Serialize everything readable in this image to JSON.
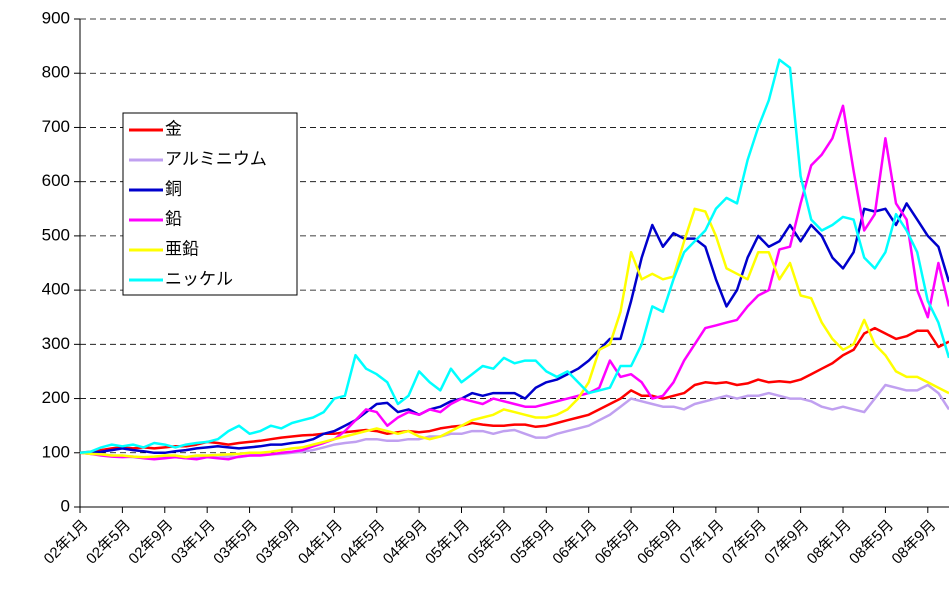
{
  "chart_data": {
    "type": "line",
    "categories": [
      "02年1月",
      null,
      null,
      null,
      "02年5月",
      null,
      null,
      null,
      "02年9月",
      null,
      null,
      null,
      "03年1月",
      null,
      null,
      null,
      "03年5月",
      null,
      null,
      null,
      "03年9月",
      null,
      null,
      null,
      "04年1月",
      null,
      null,
      null,
      "04年5月",
      null,
      null,
      null,
      "04年9月",
      null,
      null,
      null,
      "05年1月",
      null,
      null,
      null,
      "05年5月",
      null,
      null,
      null,
      "05年9月",
      null,
      null,
      null,
      "06年1月",
      null,
      null,
      null,
      "06年5月",
      null,
      null,
      null,
      "06年9月",
      null,
      null,
      null,
      "07年1月",
      null,
      null,
      null,
      "07年5月",
      null,
      null,
      null,
      "07年9月",
      null,
      null,
      null,
      "08年1月",
      null,
      null,
      null,
      "08年5月",
      null,
      null,
      null,
      "08年9月",
      null,
      null
    ],
    "series": [
      {
        "name": "金",
        "color": "#ff0000",
        "values": [
          100,
          102,
          105,
          108,
          110,
          108,
          110,
          108,
          110,
          112,
          112,
          115,
          120,
          118,
          115,
          118,
          120,
          122,
          125,
          128,
          130,
          132,
          133,
          135,
          135,
          138,
          140,
          142,
          140,
          135,
          138,
          140,
          138,
          140,
          145,
          148,
          150,
          155,
          152,
          150,
          150,
          152,
          152,
          148,
          150,
          155,
          160,
          165,
          170,
          180,
          190,
          200,
          215,
          205,
          205,
          200,
          205,
          210,
          225,
          230,
          228,
          230,
          225,
          228,
          235,
          230,
          232,
          230,
          235,
          245,
          255,
          265,
          280,
          290,
          320,
          330,
          320,
          310,
          315,
          325,
          325,
          295,
          305
        ]
      },
      {
        "name": "アルミニウム",
        "color": "#c0a0f0",
        "values": [
          100,
          98,
          97,
          95,
          93,
          92,
          90,
          92,
          93,
          92,
          90,
          92,
          92,
          95,
          93,
          92,
          95,
          96,
          97,
          98,
          100,
          102,
          105,
          110,
          115,
          118,
          120,
          125,
          125,
          122,
          122,
          125,
          125,
          130,
          130,
          135,
          135,
          140,
          140,
          135,
          140,
          142,
          135,
          128,
          128,
          135,
          140,
          145,
          150,
          160,
          170,
          185,
          200,
          195,
          190,
          185,
          185,
          180,
          190,
          195,
          200,
          205,
          200,
          205,
          205,
          210,
          205,
          200,
          200,
          195,
          185,
          180,
          185,
          180,
          175,
          200,
          225,
          220,
          215,
          215,
          225,
          210,
          180
        ]
      },
      {
        "name": "銅",
        "color": "#0000cc",
        "values": [
          100,
          100,
          102,
          105,
          108,
          105,
          103,
          100,
          100,
          103,
          105,
          108,
          110,
          112,
          110,
          108,
          110,
          112,
          115,
          115,
          118,
          120,
          125,
          135,
          140,
          150,
          160,
          175,
          190,
          192,
          175,
          180,
          170,
          180,
          185,
          195,
          200,
          210,
          205,
          210,
          210,
          210,
          200,
          220,
          230,
          235,
          245,
          255,
          270,
          290,
          310,
          310,
          380,
          460,
          520,
          480,
          505,
          495,
          495,
          480,
          420,
          370,
          400,
          460,
          500,
          480,
          490,
          520,
          490,
          520,
          500,
          460,
          440,
          470,
          550,
          545,
          550,
          520,
          560,
          530,
          500,
          480,
          415
        ]
      },
      {
        "name": "鉛",
        "color": "#ff00ff",
        "values": [
          100,
          98,
          95,
          93,
          92,
          93,
          90,
          88,
          90,
          92,
          90,
          88,
          92,
          90,
          88,
          93,
          95,
          95,
          97,
          100,
          102,
          105,
          112,
          118,
          125,
          140,
          160,
          180,
          175,
          150,
          165,
          175,
          170,
          180,
          175,
          190,
          200,
          195,
          190,
          200,
          195,
          190,
          185,
          185,
          190,
          195,
          200,
          205,
          210,
          220,
          270,
          240,
          245,
          230,
          200,
          205,
          230,
          270,
          300,
          330,
          335,
          340,
          345,
          370,
          390,
          400,
          475,
          480,
          560,
          630,
          650,
          680,
          740,
          620,
          510,
          540,
          680,
          560,
          530,
          400,
          350,
          450,
          370
        ]
      },
      {
        "name": "亜鉛",
        "color": "#ffff00",
        "values": [
          100,
          98,
          97,
          95,
          95,
          93,
          92,
          93,
          95,
          95,
          92,
          95,
          95,
          96,
          97,
          98,
          100,
          100,
          102,
          105,
          108,
          110,
          115,
          120,
          125,
          130,
          135,
          140,
          145,
          140,
          135,
          140,
          130,
          125,
          130,
          140,
          150,
          160,
          165,
          170,
          180,
          175,
          170,
          165,
          165,
          170,
          180,
          200,
          230,
          290,
          300,
          360,
          470,
          420,
          430,
          420,
          425,
          490,
          550,
          545,
          500,
          440,
          430,
          420,
          470,
          470,
          420,
          450,
          390,
          385,
          340,
          310,
          290,
          300,
          345,
          300,
          280,
          250,
          240,
          240,
          230,
          220,
          210
        ]
      },
      {
        "name": "ニッケル",
        "color": "#00ffff",
        "values": [
          100,
          102,
          110,
          115,
          112,
          115,
          110,
          118,
          115,
          110,
          115,
          118,
          120,
          125,
          140,
          150,
          135,
          140,
          150,
          145,
          155,
          160,
          165,
          175,
          200,
          205,
          280,
          255,
          245,
          230,
          190,
          205,
          250,
          230,
          215,
          255,
          230,
          245,
          260,
          255,
          275,
          265,
          270,
          270,
          250,
          240,
          250,
          230,
          210,
          215,
          220,
          260,
          260,
          300,
          370,
          360,
          420,
          470,
          490,
          510,
          550,
          570,
          560,
          640,
          700,
          750,
          825,
          810,
          610,
          530,
          510,
          520,
          535,
          530,
          460,
          440,
          470,
          540,
          510,
          470,
          380,
          340,
          275
        ]
      }
    ],
    "ylim": [
      0,
      900
    ],
    "yticks": [
      0,
      100,
      200,
      300,
      400,
      500,
      600,
      700,
      800,
      900
    ],
    "grid": true,
    "legend": "upper left"
  }
}
